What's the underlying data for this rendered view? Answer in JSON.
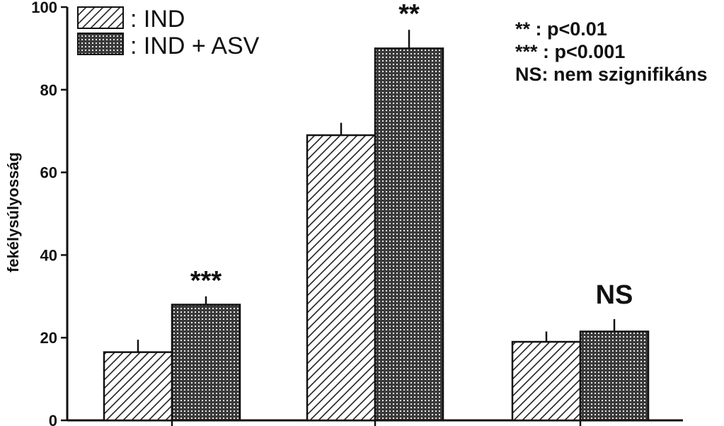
{
  "chart_data": {
    "type": "bar",
    "title": "",
    "xlabel": "",
    "ylabel": "fekélysúlyosság",
    "ylim": [
      0,
      100
    ],
    "yticks": [
      0,
      20,
      40,
      60,
      80,
      100
    ],
    "categories": [
      "",
      "",
      ""
    ],
    "series": [
      {
        "name": "IND",
        "pattern": "hatch-diagonal",
        "values": [
          16.5,
          69,
          19
        ],
        "errors": [
          3,
          3,
          2.5
        ]
      },
      {
        "name": "IND + ASV",
        "pattern": "crosshatch-dark",
        "values": [
          28,
          90,
          21.5
        ],
        "errors": [
          2,
          4.5,
          3
        ]
      }
    ],
    "significance": [
      "***",
      "**",
      "NS"
    ],
    "legend": {
      "placement": "top-left",
      "entries": [
        ": IND",
        ": IND + ASV"
      ]
    },
    "notes": [
      "** : p<0.01",
      "*** : p<0.001",
      "NS: nem szignifikáns"
    ],
    "grid": false
  }
}
